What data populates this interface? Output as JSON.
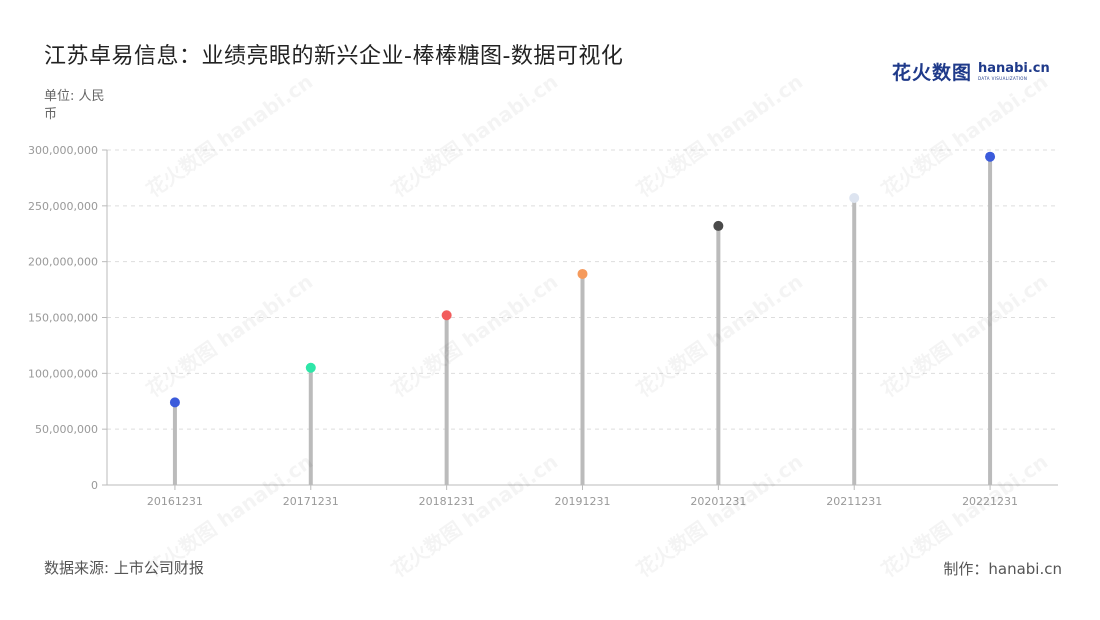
{
  "header": {
    "title": "江苏卓易信息：业绩亮眼的新兴企业-棒棒糖图-数据可视化",
    "unit": "单位: 人民币"
  },
  "logo": {
    "cn": "花火数图",
    "en": "hanabi.cn",
    "sub": "DATA VISUALIZATION"
  },
  "footer": {
    "source": "数据来源: 上市公司财报",
    "credit": "制作：hanabi.cn"
  },
  "chart_data": {
    "type": "lollipop",
    "categories": [
      "20161231",
      "20171231",
      "20181231",
      "20191231",
      "20201231",
      "20211231",
      "20221231"
    ],
    "values": [
      74000000,
      105000000,
      152000000,
      189000000,
      232000000,
      257000000,
      294000000
    ],
    "dot_colors": [
      "#3b5bdb",
      "#2ee6a8",
      "#f25c5c",
      "#f59a5c",
      "#4a4a4a",
      "#dde4f0",
      "#3b5bdb"
    ],
    "stem_color": "#bbbbbb",
    "ylim": [
      0,
      300000000
    ],
    "yticks": [
      0,
      50000000,
      100000000,
      150000000,
      200000000,
      250000000,
      300000000
    ],
    "ytick_labels": [
      "0",
      "50,000,000",
      "100,000,000",
      "150,000,000",
      "200,000,000",
      "250,000,000",
      "300,000,000"
    ],
    "grid": true
  }
}
